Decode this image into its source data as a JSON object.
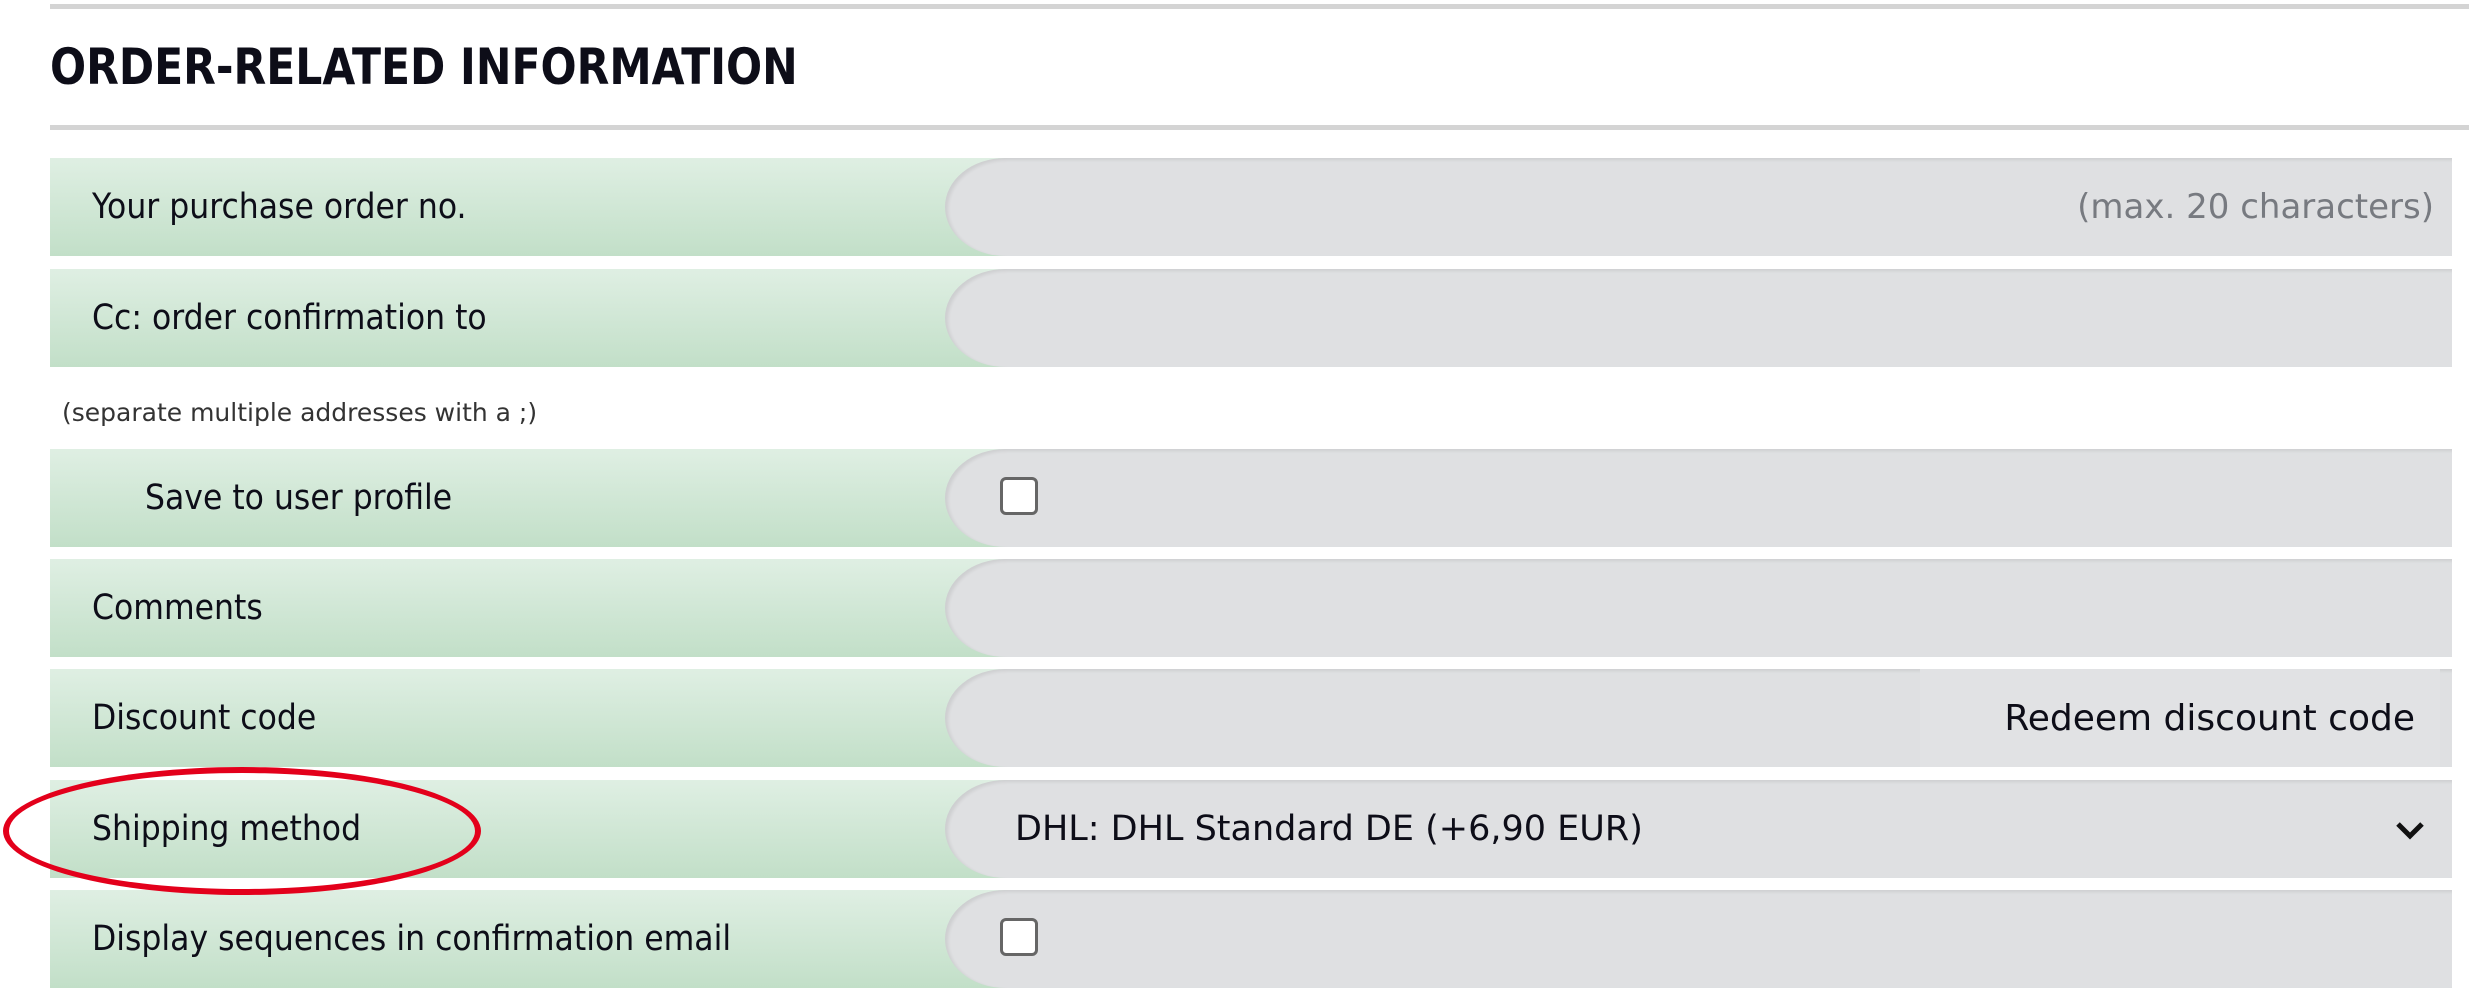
{
  "section_title": "ORDER-RELATED INFORMATION",
  "rows": [
    {
      "label": "Your purchase order no.",
      "type": "text",
      "value": "",
      "hint": "(max. 20 characters)"
    },
    {
      "label": "Cc: order confirmation to",
      "type": "text",
      "value": ""
    },
    {
      "label": "Save to user profile",
      "type": "checkbox",
      "checked": false
    },
    {
      "label": "Comments",
      "type": "text",
      "value": ""
    },
    {
      "label": "Discount code",
      "type": "text",
      "value": "",
      "button": "Redeem discount code"
    },
    {
      "label": "Shipping method",
      "type": "select",
      "value": "DHL: DHL Standard DE (+6,90 EUR)",
      "icon": "chevron-down-icon"
    },
    {
      "label": "Display sequences in confirmation email",
      "type": "checkbox",
      "checked": false
    }
  ],
  "cc_note": "(separate multiple addresses with a ;)",
  "colors": {
    "label_bg_top": "#dfefe3",
    "label_bg_bottom": "#c2dfc8",
    "field_bg": "#dfe0e2",
    "highlight": "#e3001b"
  },
  "annotation": {
    "type": "red-ellipse",
    "target": "Shipping method"
  }
}
